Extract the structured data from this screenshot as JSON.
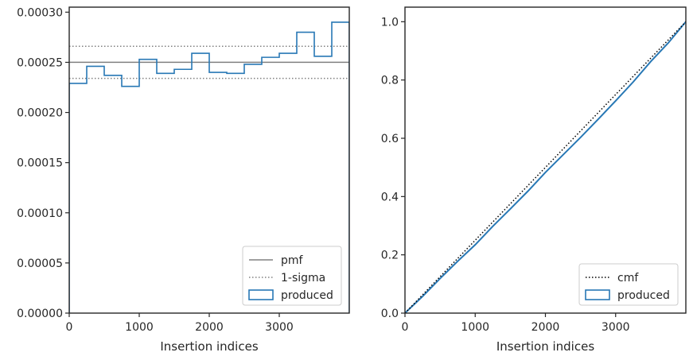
{
  "colors": {
    "produced": "#2878b5",
    "pmf": "#808080",
    "sigma": "#808080",
    "cmf": "#000000",
    "axis": "#262626"
  },
  "chart_data": [
    {
      "type": "line",
      "xlabel": "Insertion indices",
      "ylabel": "",
      "xlim": [
        0,
        4000
      ],
      "ylim": [
        0,
        0.000305
      ],
      "xticks": [
        0,
        1000,
        2000,
        3000
      ],
      "xtick_labels": [
        "0",
        "1000",
        "2000",
        "3000"
      ],
      "yticks": [
        0,
        5e-05,
        0.0001,
        0.00015,
        0.0002,
        0.00025,
        0.0003
      ],
      "ytick_labels": [
        "0.00000",
        "0.00005",
        "0.00010",
        "0.00015",
        "0.00020",
        "0.00025",
        "0.00030"
      ],
      "grid": false,
      "legend": {
        "position": "bottom-right",
        "entries": [
          {
            "label": "pmf",
            "style": "solid-line"
          },
          {
            "label": "1-sigma",
            "style": "dotted-line"
          },
          {
            "label": "produced",
            "style": "box"
          }
        ]
      },
      "pmf": 0.00025,
      "sigma_band": [
        0.000234,
        0.000266
      ],
      "series": [
        {
          "name": "produced",
          "type": "step-histogram",
          "bin_edges": [
            0,
            250,
            500,
            750,
            1000,
            1250,
            1500,
            1750,
            2000,
            2250,
            2500,
            2750,
            3000,
            3250,
            3500,
            3750,
            4000
          ],
          "values": [
            0.000229,
            0.000246,
            0.000237,
            0.000226,
            0.000253,
            0.000239,
            0.000243,
            0.000259,
            0.00024,
            0.000239,
            0.000248,
            0.000255,
            0.000259,
            0.00028,
            0.000256,
            0.00029
          ]
        }
      ]
    },
    {
      "type": "line",
      "xlabel": "Insertion indices",
      "ylabel": "",
      "xlim": [
        0,
        4000
      ],
      "ylim": [
        0,
        1.05
      ],
      "xticks": [
        0,
        1000,
        2000,
        3000
      ],
      "xtick_labels": [
        "0",
        "1000",
        "2000",
        "3000"
      ],
      "yticks": [
        0,
        0.2,
        0.4,
        0.6,
        0.8,
        1.0
      ],
      "ytick_labels": [
        "0.0",
        "0.2",
        "0.4",
        "0.6",
        "0.8",
        "1.0"
      ],
      "grid": false,
      "legend": {
        "position": "bottom-right",
        "entries": [
          {
            "label": "cmf",
            "style": "dotted-line"
          },
          {
            "label": "produced",
            "style": "box"
          }
        ]
      },
      "series": [
        {
          "name": "cmf",
          "x": [
            0,
            4000
          ],
          "y": [
            0,
            1.0
          ]
        },
        {
          "name": "produced",
          "x": [
            0,
            250,
            500,
            750,
            1000,
            1250,
            1500,
            1750,
            2000,
            2250,
            2500,
            2750,
            3000,
            3250,
            3500,
            3750,
            4000
          ],
          "y": [
            0,
            0.0573,
            0.1188,
            0.178,
            0.2345,
            0.2978,
            0.3575,
            0.4183,
            0.483,
            0.543,
            0.6028,
            0.6648,
            0.7285,
            0.7933,
            0.8633,
            0.9273,
            1.0
          ]
        }
      ]
    }
  ]
}
